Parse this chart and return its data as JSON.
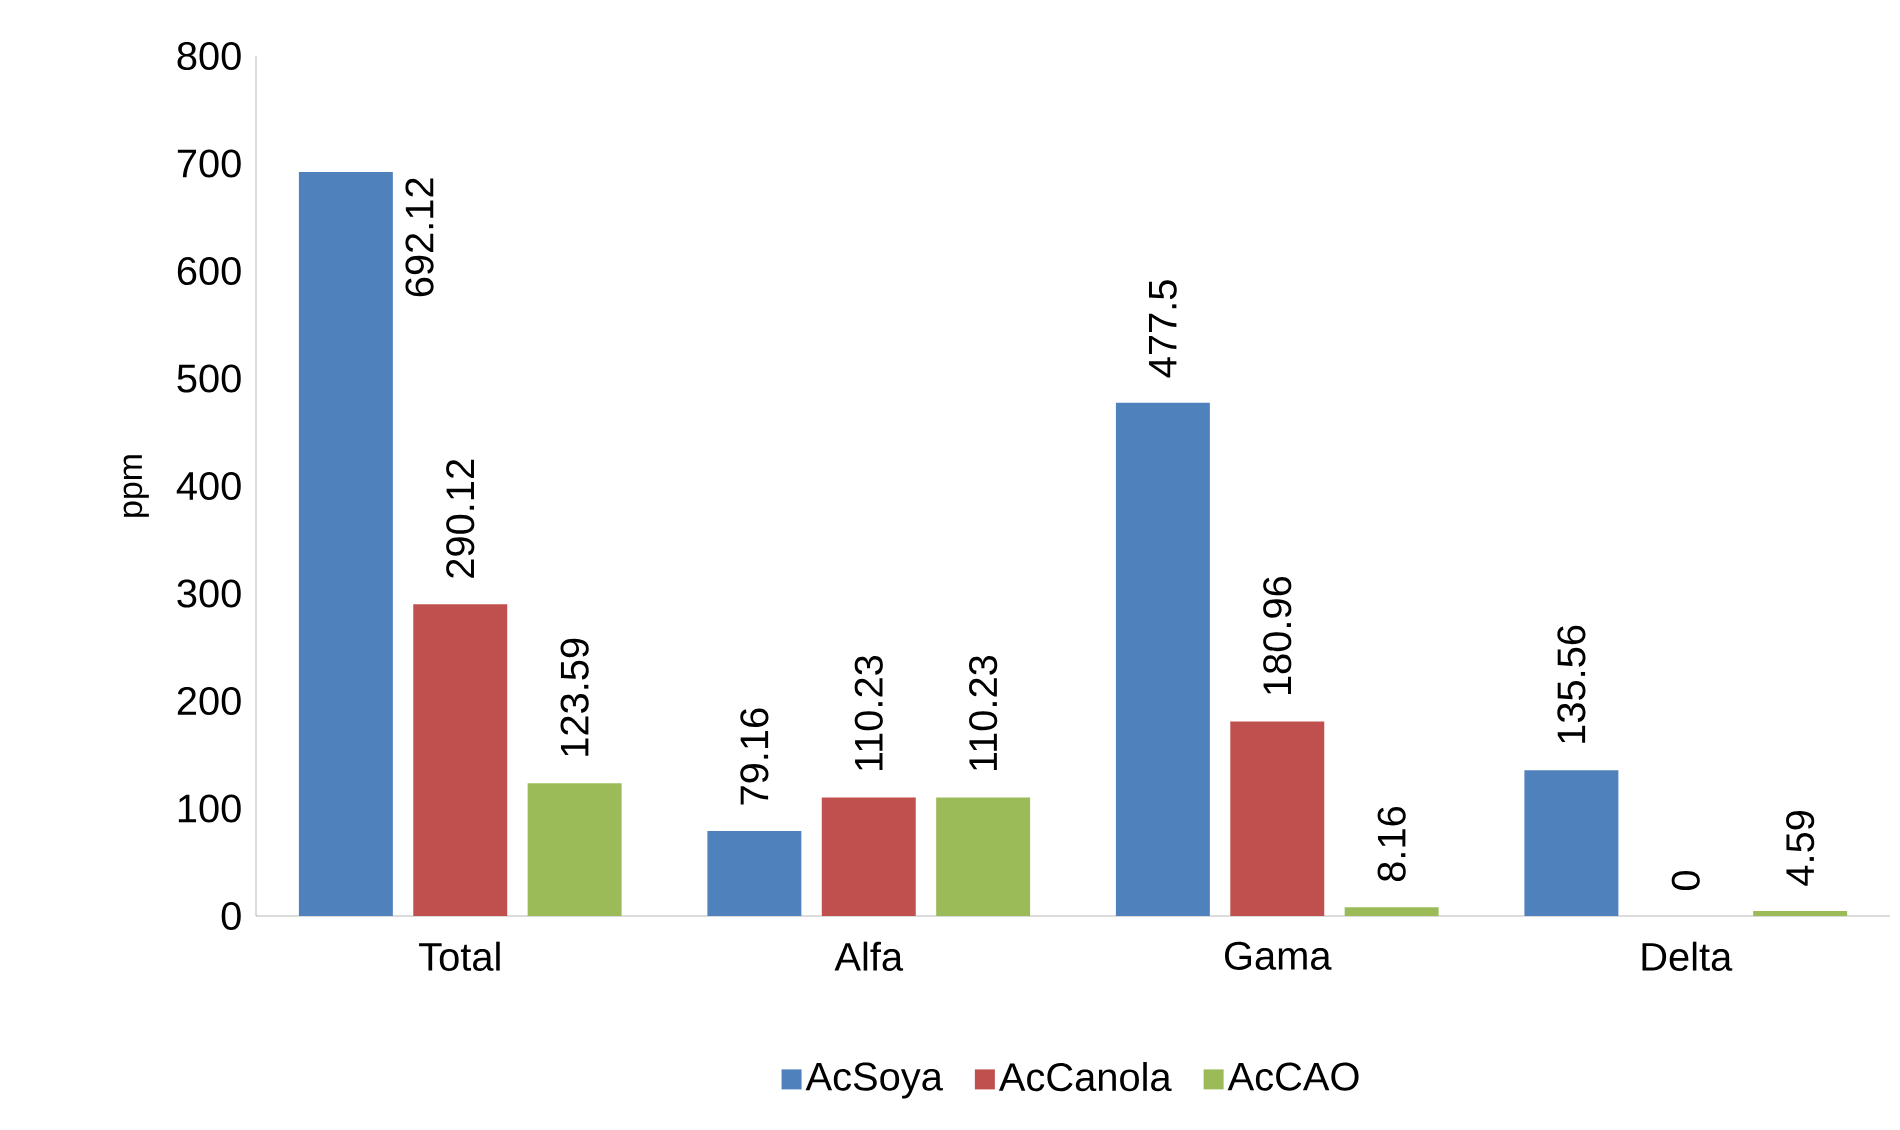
{
  "chart_data": {
    "type": "bar",
    "ylabel": "ppm",
    "categories": [
      "Total",
      "Alfa",
      "Gama",
      "Delta"
    ],
    "series": [
      {
        "name": "AcSoya",
        "color": "#4f81bd",
        "values": [
          692.12,
          79.16,
          477.5,
          135.56
        ]
      },
      {
        "name": "AcCanola",
        "color": "#c0504d",
        "values": [
          290.12,
          110.23,
          180.96,
          0
        ]
      },
      {
        "name": "AcCAO",
        "color": "#9bbb59",
        "values": [
          123.59,
          110.23,
          8.16,
          4.59
        ]
      }
    ],
    "ylim": [
      0,
      800
    ],
    "yticks": [
      0,
      100,
      200,
      300,
      400,
      500,
      600,
      700,
      800
    ],
    "data_labels": true,
    "legend": "bottom",
    "grid": false
  }
}
